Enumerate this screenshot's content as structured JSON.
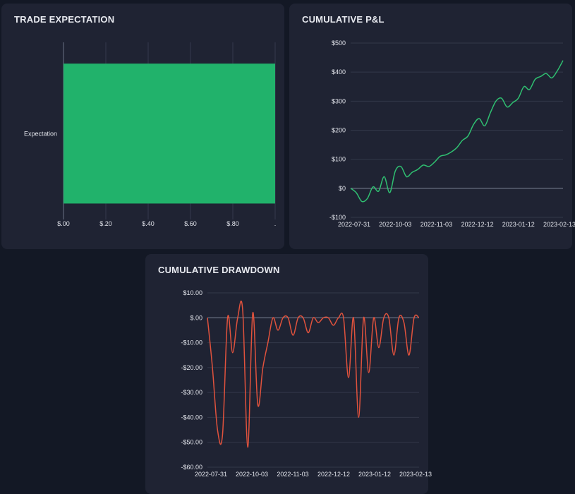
{
  "charts": [
    {
      "id": "expectation",
      "title": "TRADE EXPECTATION",
      "chart_data": {
        "type": "bar",
        "orientation": "horizontal",
        "categories": [
          "Expectation"
        ],
        "values": [
          1.0
        ],
        "xlim": [
          0,
          1.0
        ],
        "xticks": [
          0,
          0.2,
          0.4,
          0.6,
          0.8,
          1.0
        ],
        "xtick_labels": [
          "$.00",
          "$.20",
          "$.40",
          "$.60",
          "$.80",
          "."
        ],
        "grid": true,
        "color": "#21b26b"
      }
    },
    {
      "id": "pnl",
      "title": "CUMULATIVE P&L",
      "chart_data": {
        "type": "line",
        "ylim": [
          -100,
          500
        ],
        "yticks": [
          -100,
          0,
          100,
          200,
          300,
          400,
          500
        ],
        "ytick_labels": [
          "-$100",
          "$0",
          "$100",
          "$200",
          "$300",
          "$400",
          "$500"
        ],
        "x_tick_labels": [
          "2022-07-31",
          "2022-10-03",
          "2022-11-03",
          "2022-12-12",
          "2023-01-12",
          "2023-02-13"
        ],
        "grid": true,
        "color": "#2fbf71",
        "series": [
          {
            "values": [
              0,
              -15,
              -45,
              -35,
              5,
              -10,
              40,
              -15,
              60,
              75,
              40,
              55,
              65,
              80,
              75,
              90,
              110,
              115,
              125,
              140,
              165,
              180,
              220,
              240,
              215,
              260,
              300,
              310,
              280,
              295,
              310,
              350,
              340,
              375,
              385,
              395,
              380,
              405,
              440
            ]
          }
        ]
      }
    },
    {
      "id": "drawdown",
      "title": "CUMULATIVE DRAWDOWN",
      "chart_data": {
        "type": "line",
        "ylim": [
          -60,
          10
        ],
        "yticks": [
          -60,
          -50,
          -40,
          -30,
          -20,
          -10,
          0,
          10
        ],
        "ytick_labels": [
          "-$60.00",
          "-$50.00",
          "-$40.00",
          "-$30.00",
          "-$20.00",
          "-$10.00",
          "$.00",
          "$10.00"
        ],
        "x_tick_labels": [
          "2022-07-31",
          "2022-10-03",
          "2022-11-03",
          "2022-12-12",
          "2023-01-12",
          "2023-02-13"
        ],
        "grid": true,
        "color": "#e0523d",
        "series": [
          {
            "values": [
              0,
              -20,
              -45,
              -47,
              0,
              -14,
              0,
              3,
              -52,
              2,
              -35,
              -20,
              -10,
              0,
              -5,
              0,
              0,
              -7,
              0,
              0,
              -6,
              0,
              -2,
              0,
              0,
              -3,
              0,
              0,
              -24,
              0,
              -40,
              0,
              -22,
              0,
              -12,
              0,
              0,
              -15,
              0,
              -2,
              -15,
              0,
              0
            ]
          }
        ]
      }
    }
  ]
}
